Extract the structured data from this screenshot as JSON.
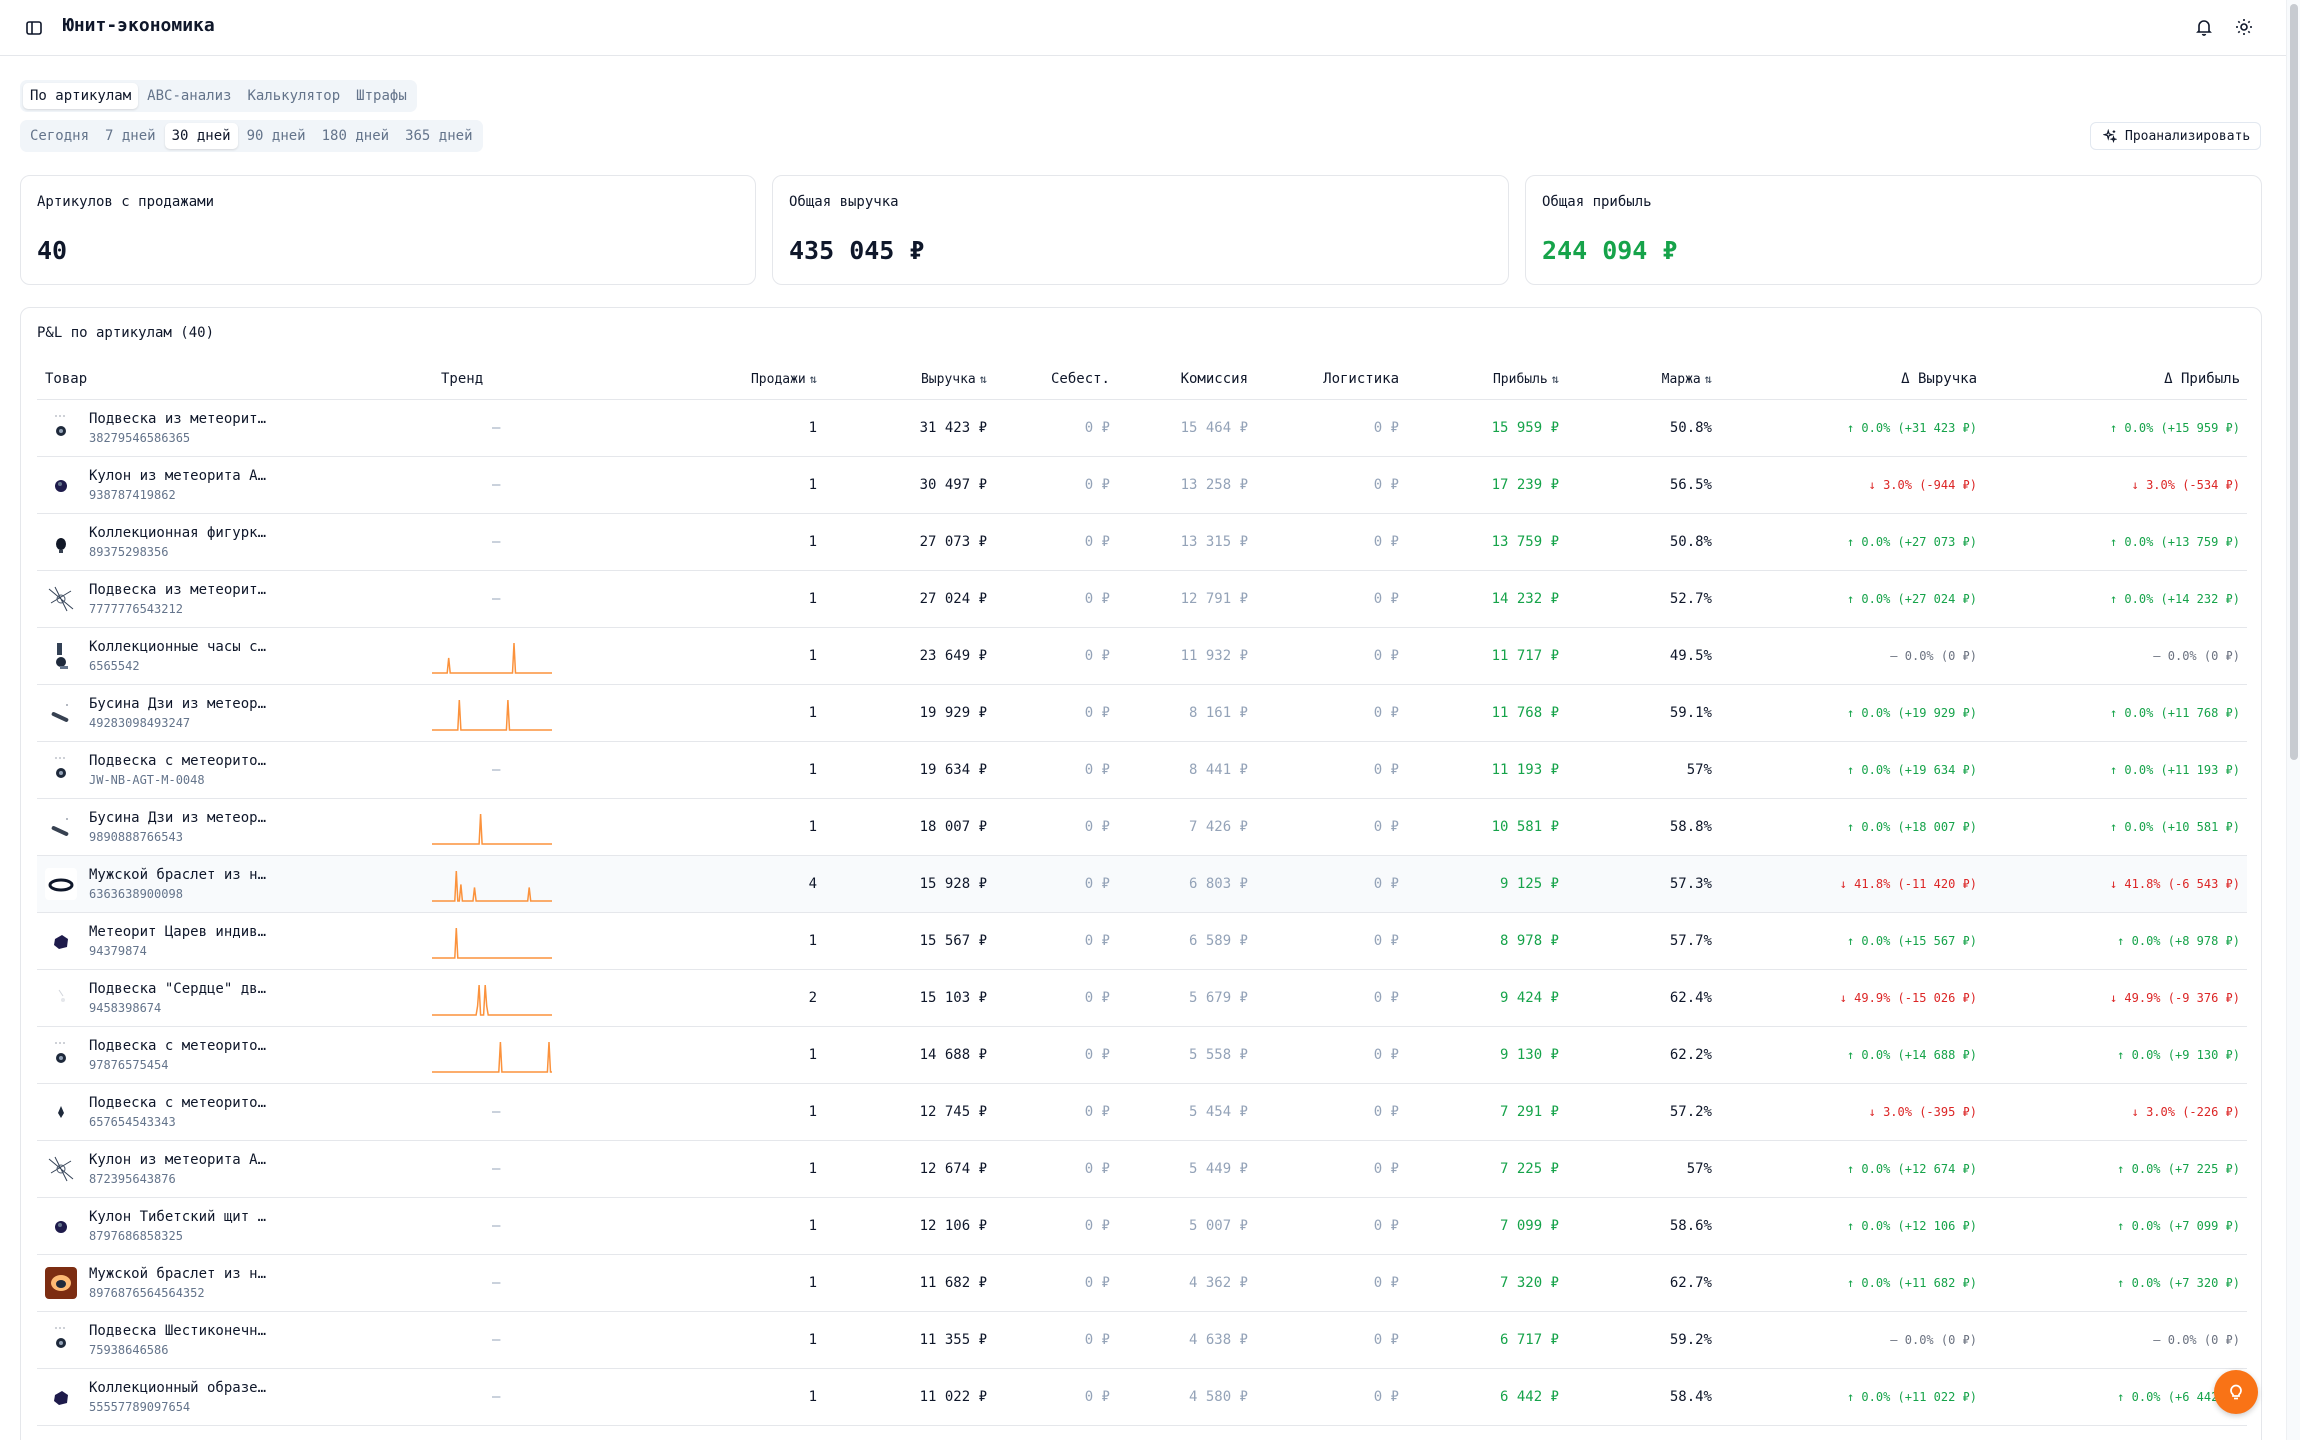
{
  "app": {
    "title": "Юнит-экономика"
  },
  "icons": {
    "sidebar": "sidebar-toggle-icon",
    "bell": "bell-icon",
    "theme": "sun-icon",
    "analyze": "sparkles-icon",
    "help": "lightbulb-icon"
  },
  "colors": {
    "positive": "#16a34a",
    "negative": "#dc2626",
    "spark": "#fb923c",
    "fab": "#f97316"
  },
  "tabs": [
    {
      "label": "По артикулам",
      "active": true
    },
    {
      "label": "ABC-анализ",
      "active": false
    },
    {
      "label": "Калькулятор",
      "active": false
    },
    {
      "label": "Штрафы",
      "active": false
    }
  ],
  "periods": [
    {
      "label": "Сегодня",
      "active": false
    },
    {
      "label": "7 дней",
      "active": false
    },
    {
      "label": "30 дней",
      "active": true
    },
    {
      "label": "90 дней",
      "active": false
    },
    {
      "label": "180 дней",
      "active": false
    },
    {
      "label": "365 дней",
      "active": false
    }
  ],
  "analyze_button": "Проанализировать",
  "stats": {
    "articles_label": "Артикулов с продажами",
    "articles_value": "40",
    "revenue_label": "Общая выручка",
    "revenue_value": "435 045 ₽",
    "profit_label": "Общая прибыль",
    "profit_value": "244 094 ₽"
  },
  "table": {
    "title": "P&L по артикулам (40)",
    "columns": {
      "product": "Товар",
      "trend": "Тренд",
      "sales": "Продажи",
      "revenue": "Выручка",
      "cost": "Себест.",
      "commission": "Комиссия",
      "logistics": "Логистика",
      "profit": "Прибыль",
      "margin": "Маржа",
      "delta_revenue": "Δ Выручка",
      "delta_profit": "Δ Прибыль"
    },
    "sort_icon": "⇅",
    "rows": [
      {
        "name": "Подвеска из метеорит…",
        "sku": "38279546586365",
        "trend": "—",
        "spark": null,
        "sales": "1",
        "revenue": "31 423 ₽",
        "cost": "0 ₽",
        "commission": "15 464 ₽",
        "logistics": "0 ₽",
        "profit": "15 959 ₽",
        "margin": "50.8%",
        "dr": "↑ 0.0% (+31 423 ₽)",
        "dr_dir": "up",
        "dp": "↑ 0.0% (+15 959 ₽)",
        "dp_dir": "up",
        "img": "pendant"
      },
      {
        "name": "Кулон из метеорита А…",
        "sku": "938787419862",
        "trend": "—",
        "spark": null,
        "sales": "1",
        "revenue": "30 497 ₽",
        "cost": "0 ₽",
        "commission": "13 258 ₽",
        "logistics": "0 ₽",
        "profit": "17 239 ₽",
        "margin": "56.5%",
        "dr": "↓ 3.0% (-944 ₽)",
        "dr_dir": "down",
        "dp": "↓ 3.0% (-534 ₽)",
        "dp_dir": "down",
        "img": "round"
      },
      {
        "name": "Коллекционная фигурк…",
        "sku": "89375298356",
        "trend": "—",
        "spark": null,
        "sales": "1",
        "revenue": "27 073 ₽",
        "cost": "0 ₽",
        "commission": "13 315 ₽",
        "logistics": "0 ₽",
        "profit": "13 759 ₽",
        "margin": "50.8%",
        "dr": "↑ 0.0% (+27 073 ₽)",
        "dr_dir": "up",
        "dp": "↑ 0.0% (+13 759 ₽)",
        "dp_dir": "up",
        "img": "figure"
      },
      {
        "name": "Подвеска из метеорит…",
        "sku": "7777776543212",
        "trend": "—",
        "spark": null,
        "sales": "1",
        "revenue": "27 024 ₽",
        "cost": "0 ₽",
        "commission": "12 791 ₽",
        "logistics": "0 ₽",
        "profit": "14 232 ₽",
        "margin": "52.7%",
        "dr": "↑ 0.0% (+27 024 ₽)",
        "dr_dir": "up",
        "dp": "↑ 0.0% (+14 232 ₽)",
        "dp_dir": "up",
        "img": "sketch"
      },
      {
        "name": "Коллекционные часы с…",
        "sku": "6565542",
        "trend": "",
        "spark": [
          0,
          0,
          0,
          0,
          0,
          0,
          0,
          0,
          0,
          0,
          0,
          0.5,
          0,
          0,
          0,
          0,
          0,
          0,
          0,
          0,
          0,
          0,
          0,
          0,
          0,
          0,
          0,
          0,
          0,
          0,
          0,
          0,
          0,
          0,
          0,
          0,
          0,
          0,
          0,
          0,
          0,
          0,
          0,
          0,
          0,
          0,
          0,
          0,
          0,
          0,
          0,
          0,
          0,
          0,
          1,
          0,
          0,
          0,
          0,
          0,
          0,
          0,
          0,
          0,
          0,
          0,
          0,
          0,
          0,
          0,
          0,
          0,
          0,
          0,
          0,
          0,
          0,
          0,
          0,
          0
        ],
        "sales": "1",
        "revenue": "23 649 ₽",
        "cost": "0 ₽",
        "commission": "11 932 ₽",
        "logistics": "0 ₽",
        "profit": "11 717 ₽",
        "margin": "49.5%",
        "dr": "— 0.0% (0 ₽)",
        "dr_dir": "flat",
        "dp": "— 0.0% (0 ₽)",
        "dp_dir": "flat",
        "img": "watch"
      },
      {
        "name": "Бусина Дзи из метеор…",
        "sku": "49283098493247",
        "trend": "",
        "spark": [
          0,
          0,
          0,
          0,
          0,
          0,
          0,
          0,
          0,
          0,
          0,
          0,
          0,
          0,
          0,
          0,
          0,
          0,
          1,
          0,
          0,
          0,
          0,
          0,
          0,
          0,
          0,
          0,
          0,
          0,
          0,
          0,
          0,
          0,
          0,
          0,
          0,
          0,
          0,
          0,
          0,
          0,
          0,
          0,
          0,
          0,
          0,
          0,
          0,
          0,
          1,
          0,
          0,
          0,
          0,
          0,
          0,
          0,
          0,
          0,
          0,
          0,
          0,
          0,
          0,
          0,
          0,
          0,
          0,
          0,
          0,
          0,
          0,
          0,
          0,
          0,
          0,
          0,
          0,
          0
        ],
        "sales": "1",
        "revenue": "19 929 ₽",
        "cost": "0 ₽",
        "commission": "8 161 ₽",
        "logistics": "0 ₽",
        "profit": "11 768 ₽",
        "margin": "59.1%",
        "dr": "↑ 0.0% (+19 929 ₽)",
        "dr_dir": "up",
        "dp": "↑ 0.0% (+11 768 ₽)",
        "dp_dir": "up",
        "img": "bead"
      },
      {
        "name": "Подвеска с метеорито…",
        "sku": "JW-NB-AGT-M-0048",
        "trend": "—",
        "spark": null,
        "sales": "1",
        "revenue": "19 634 ₽",
        "cost": "0 ₽",
        "commission": "8 441 ₽",
        "logistics": "0 ₽",
        "profit": "11 193 ₽",
        "margin": "57%",
        "dr": "↑ 0.0% (+19 634 ₽)",
        "dr_dir": "up",
        "dp": "↑ 0.0% (+11 193 ₽)",
        "dp_dir": "up",
        "img": "pendant"
      },
      {
        "name": "Бусина Дзи из метеор…",
        "sku": "9890888766543",
        "trend": "",
        "spark": [
          0,
          0,
          0,
          0,
          0,
          0,
          0,
          0,
          0,
          0,
          0,
          0,
          0,
          0,
          0,
          0,
          0,
          0,
          0,
          0,
          0,
          0,
          0,
          0,
          0,
          0,
          0,
          0,
          0,
          0,
          0,
          0,
          1,
          0,
          0,
          0,
          0,
          0,
          0,
          0,
          0,
          0,
          0,
          0,
          0,
          0,
          0,
          0,
          0,
          0,
          0,
          0,
          0,
          0,
          0,
          0,
          0,
          0,
          0,
          0,
          0,
          0,
          0,
          0,
          0,
          0,
          0,
          0,
          0,
          0,
          0,
          0,
          0,
          0,
          0,
          0,
          0,
          0,
          0,
          0
        ],
        "sales": "1",
        "revenue": "18 007 ₽",
        "cost": "0 ₽",
        "commission": "7 426 ₽",
        "logistics": "0 ₽",
        "profit": "10 581 ₽",
        "margin": "58.8%",
        "dr": "↑ 0.0% (+18 007 ₽)",
        "dr_dir": "up",
        "dp": "↑ 0.0% (+10 581 ₽)",
        "dp_dir": "up",
        "img": "bead"
      },
      {
        "name": "Мужской браслет из н…",
        "sku": "6363638900098",
        "trend": "",
        "spark": [
          0,
          0,
          0,
          0,
          0,
          0,
          0,
          0,
          0,
          0,
          0,
          0,
          0,
          0,
          0,
          0,
          1,
          0,
          0,
          0.55,
          0,
          0,
          0,
          0,
          0,
          0,
          0,
          0,
          0.45,
          0,
          0,
          0,
          0,
          0,
          0,
          0,
          0,
          0,
          0,
          0,
          0,
          0,
          0,
          0,
          0,
          0,
          0,
          0,
          0,
          0,
          0,
          0,
          0,
          0,
          0,
          0,
          0,
          0,
          0,
          0,
          0,
          0,
          0,
          0,
          0.45,
          0,
          0,
          0,
          0,
          0,
          0,
          0,
          0,
          0,
          0,
          0,
          0,
          0,
          0,
          0
        ],
        "sales": "4",
        "revenue": "15 928 ₽",
        "cost": "0 ₽",
        "commission": "6 803 ₽",
        "logistics": "0 ₽",
        "profit": "9 125 ₽",
        "margin": "57.3%",
        "dr": "↓ 41.8% (-11 420 ₽)",
        "dr_dir": "down",
        "dp": "↓ 41.8% (-6 543 ₽)",
        "dp_dir": "down",
        "img": "bracelet"
      },
      {
        "name": "Метеорит Царев индив…",
        "sku": "94379874",
        "trend": "",
        "spark": [
          0,
          0,
          0,
          0,
          0,
          0,
          0,
          0,
          0,
          0,
          0,
          0,
          0,
          0,
          0,
          0,
          1,
          0,
          0,
          0,
          0,
          0,
          0,
          0,
          0,
          0,
          0,
          0,
          0,
          0,
          0,
          0,
          0,
          0,
          0,
          0,
          0,
          0,
          0,
          0,
          0,
          0,
          0,
          0,
          0,
          0,
          0,
          0,
          0,
          0,
          0,
          0,
          0,
          0,
          0,
          0,
          0,
          0,
          0,
          0,
          0,
          0,
          0,
          0,
          0,
          0,
          0,
          0,
          0,
          0,
          0,
          0,
          0,
          0,
          0,
          0,
          0,
          0,
          0,
          0
        ],
        "sales": "1",
        "revenue": "15 567 ₽",
        "cost": "0 ₽",
        "commission": "6 589 ₽",
        "logistics": "0 ₽",
        "profit": "8 978 ₽",
        "margin": "57.7%",
        "dr": "↑ 0.0% (+15 567 ₽)",
        "dr_dir": "up",
        "dp": "↑ 0.0% (+8 978 ₽)",
        "dp_dir": "up",
        "img": "rock"
      },
      {
        "name": "Подвеска \"Сердце\" дв…",
        "sku": "9458398674",
        "trend": "",
        "spark": [
          0,
          0,
          0,
          0,
          0,
          0,
          0,
          0,
          0,
          0,
          0,
          0,
          0,
          0,
          0,
          0,
          0,
          0,
          0,
          0,
          0,
          0,
          0,
          0,
          0,
          0,
          0,
          0,
          0,
          0,
          0.3,
          1,
          0,
          0,
          0,
          1,
          0.3,
          0,
          0,
          0,
          0,
          0,
          0,
          0,
          0,
          0,
          0,
          0,
          0,
          0,
          0,
          0,
          0,
          0,
          0,
          0,
          0,
          0,
          0,
          0,
          0,
          0,
          0,
          0,
          0,
          0,
          0,
          0,
          0,
          0,
          0,
          0,
          0,
          0,
          0,
          0,
          0,
          0,
          0,
          0
        ],
        "sales": "2",
        "revenue": "15 103 ₽",
        "cost": "0 ₽",
        "commission": "5 679 ₽",
        "logistics": "0 ₽",
        "profit": "9 424 ₽",
        "margin": "62.4%",
        "dr": "↓ 49.9% (-15 026 ₽)",
        "dr_dir": "down",
        "dp": "↓ 49.9% (-9 376 ₽)",
        "dp_dir": "down",
        "img": "heart"
      },
      {
        "name": "Подвеска с метеорито…",
        "sku": "97876575454",
        "trend": "",
        "spark": [
          0,
          0,
          0,
          0,
          0,
          0,
          0,
          0,
          0,
          0,
          0,
          0,
          0,
          0,
          0,
          0,
          0,
          0,
          0,
          0,
          0,
          0,
          0,
          0,
          0,
          0,
          0,
          0,
          0,
          0,
          0,
          0,
          0,
          0,
          0,
          0,
          0,
          0,
          0,
          0,
          0,
          0,
          0,
          0,
          0,
          1,
          0,
          0,
          0,
          0,
          0,
          0,
          0,
          0,
          0,
          0,
          0,
          0,
          0,
          0,
          0,
          0,
          0,
          0,
          0,
          0,
          0,
          0,
          0,
          0,
          0,
          0,
          0,
          0,
          0,
          0,
          0,
          1,
          0,
          0
        ],
        "sales": "1",
        "revenue": "14 688 ₽",
        "cost": "0 ₽",
        "commission": "5 558 ₽",
        "logistics": "0 ₽",
        "profit": "9 130 ₽",
        "margin": "62.2%",
        "dr": "↑ 0.0% (+14 688 ₽)",
        "dr_dir": "up",
        "dp": "↑ 0.0% (+9 130 ₽)",
        "dp_dir": "up",
        "img": "pendant"
      },
      {
        "name": "Подвеска с метеорито…",
        "sku": "657654543343",
        "trend": "—",
        "spark": null,
        "sales": "1",
        "revenue": "12 745 ₽",
        "cost": "0 ₽",
        "commission": "5 454 ₽",
        "logistics": "0 ₽",
        "profit": "7 291 ₽",
        "margin": "57.2%",
        "dr": "↓ 3.0% (-395 ₽)",
        "dr_dir": "down",
        "dp": "↓ 3.0% (-226 ₽)",
        "dp_dir": "down",
        "img": "drop"
      },
      {
        "name": "Кулон из метеорита А…",
        "sku": "872395643876",
        "trend": "—",
        "spark": null,
        "sales": "1",
        "revenue": "12 674 ₽",
        "cost": "0 ₽",
        "commission": "5 449 ₽",
        "logistics": "0 ₽",
        "profit": "7 225 ₽",
        "margin": "57%",
        "dr": "↑ 0.0% (+12 674 ₽)",
        "dr_dir": "up",
        "dp": "↑ 0.0% (+7 225 ₽)",
        "dp_dir": "up",
        "img": "sketch"
      },
      {
        "name": "Кулон Тибетский щит …",
        "sku": "8797686858325",
        "trend": "—",
        "spark": null,
        "sales": "1",
        "revenue": "12 106 ₽",
        "cost": "0 ₽",
        "commission": "5 007 ₽",
        "logistics": "0 ₽",
        "profit": "7 099 ₽",
        "margin": "58.6%",
        "dr": "↑ 0.0% (+12 106 ₽)",
        "dr_dir": "up",
        "dp": "↑ 0.0% (+7 099 ₽)",
        "dp_dir": "up",
        "img": "round"
      },
      {
        "name": "Мужской браслет из н…",
        "sku": "8976876564564352",
        "trend": "—",
        "spark": null,
        "sales": "1",
        "revenue": "11 682 ₽",
        "cost": "0 ₽",
        "commission": "4 362 ₽",
        "logistics": "0 ₽",
        "profit": "7 320 ₽",
        "margin": "62.7%",
        "dr": "↑ 0.0% (+11 682 ₽)",
        "dr_dir": "up",
        "dp": "↑ 0.0% (+7 320 ₽)",
        "dp_dir": "up",
        "img": "photo"
      },
      {
        "name": "Подвеска Шестиконечн…",
        "sku": "75938646586",
        "trend": "—",
        "spark": null,
        "sales": "1",
        "revenue": "11 355 ₽",
        "cost": "0 ₽",
        "commission": "4 638 ₽",
        "logistics": "0 ₽",
        "profit": "6 717 ₽",
        "margin": "59.2%",
        "dr": "— 0.0% (0 ₽)",
        "dr_dir": "flat",
        "dp": "— 0.0% (0 ₽)",
        "dp_dir": "flat",
        "img": "pendant"
      },
      {
        "name": "Коллекционный образе…",
        "sku": "55557789097654",
        "trend": "—",
        "spark": null,
        "sales": "1",
        "revenue": "11 022 ₽",
        "cost": "0 ₽",
        "commission": "4 580 ₽",
        "logistics": "0 ₽",
        "profit": "6 442 ₽",
        "margin": "58.4%",
        "dr": "↑ 0.0% (+11 022 ₽)",
        "dr_dir": "up",
        "dp": "↑ 0.0% (+6 442 ₽)",
        "dp_dir": "up",
        "img": "rock"
      }
    ]
  }
}
